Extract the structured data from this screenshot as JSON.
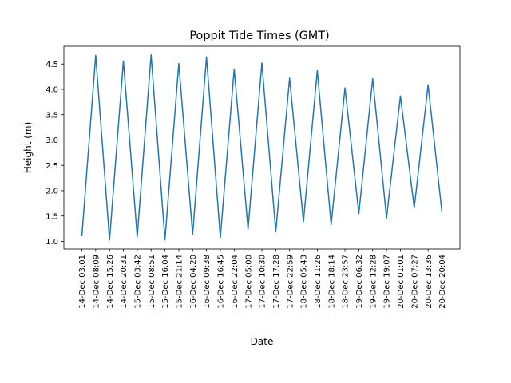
{
  "chart_data": {
    "type": "line",
    "title": "Poppit Tide Times (GMT)",
    "xlabel": "Date",
    "ylabel": "Height (m)",
    "x": [
      "14-Dec 03:01",
      "14-Dec 08:09",
      "14-Dec 15:26",
      "14-Dec 20:31",
      "15-Dec 03:42",
      "15-Dec 08:51",
      "15-Dec 16:04",
      "15-Dec 21:14",
      "16-Dec 04:20",
      "16-Dec 09:38",
      "16-Dec 16:45",
      "16-Dec 22:04",
      "17-Dec 05:00",
      "17-Dec 10:30",
      "17-Dec 17:28",
      "17-Dec 22:59",
      "18-Dec 05:43",
      "18-Dec 11:26",
      "18-Dec 18:14",
      "18-Dec 23:57",
      "19-Dec 06:32",
      "19-Dec 12:28",
      "19-Dec 19:07",
      "20-Dec 01:01",
      "20-Dec 07:27",
      "20-Dec 13:36",
      "20-Dec 20:04"
    ],
    "series": [
      {
        "color": "#1f77b4",
        "values": [
          1.1,
          4.67,
          1.03,
          4.56,
          1.09,
          4.68,
          1.03,
          4.51,
          1.14,
          4.64,
          1.08,
          4.4,
          1.24,
          4.52,
          1.19,
          4.22,
          1.39,
          4.37,
          1.33,
          4.03,
          1.55,
          4.21,
          1.46,
          3.87,
          1.66,
          4.09,
          1.57
        ]
      }
    ],
    "ylim": [
      0.85,
      4.85
    ],
    "yticks": [
      "1.0",
      "1.5",
      "2.0",
      "2.5",
      "3.0",
      "3.5",
      "4.0",
      "4.5"
    ],
    "grid": false,
    "legend": "none"
  }
}
